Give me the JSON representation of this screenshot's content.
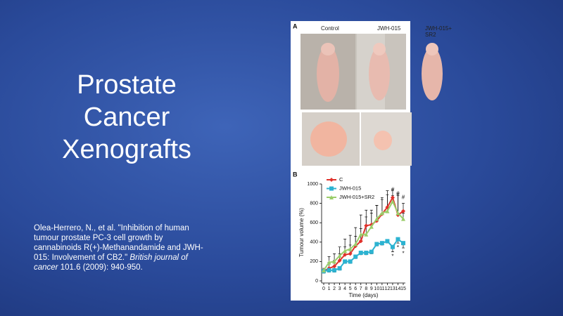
{
  "slide": {
    "title": "Prostate Cancer Xenografts",
    "citation": {
      "text": "Olea-Herrero, N., et al. \"Inhibition of human tumour prostate PC-3 cell growth by cannabinoids R(+)-Methanandamide and JWH-015: Involvement of CB2.\" ",
      "journal": "British journal of cancer",
      "details": " 101.6 (2009): 940-950."
    }
  },
  "panel_a": {
    "label": "A",
    "columns": [
      "Control",
      "JWH-015",
      "JWH-015+SR2"
    ]
  },
  "chart_data": {
    "type": "line",
    "panel_label": "B",
    "x_label": "Time (days)",
    "y_label": "Tumour volume (%)",
    "x": [
      0,
      1,
      2,
      3,
      4,
      5,
      6,
      7,
      8,
      9,
      10,
      11,
      12,
      13,
      14,
      15
    ],
    "xlim": [
      0,
      15
    ],
    "xticks": [
      0,
      1,
      2,
      3,
      4,
      5,
      6,
      7,
      8,
      9,
      10,
      11,
      12,
      13,
      14,
      15
    ],
    "ylim": [
      0,
      1000
    ],
    "yticks": [
      0,
      200,
      400,
      600,
      800,
      1000
    ],
    "series": [
      {
        "name": "C",
        "color": "#e0312b",
        "marker": "diamond",
        "error_direction": "up",
        "values": [
          100,
          130,
          150,
          210,
          270,
          280,
          360,
          410,
          570,
          580,
          620,
          690,
          760,
          860,
          680,
          720
        ],
        "errors": [
          20,
          60,
          60,
          70,
          80,
          90,
          100,
          130,
          160,
          150,
          160,
          150,
          170,
          80,
          200,
          80
        ]
      },
      {
        "name": "JWH-015",
        "color": "#2cb3d1",
        "marker": "square",
        "error_direction": "down",
        "values": [
          100,
          110,
          110,
          130,
          200,
          200,
          250,
          290,
          290,
          300,
          380,
          390,
          410,
          350,
          430,
          390
        ],
        "errors": [
          20,
          20,
          20,
          20,
          20,
          20,
          20,
          20,
          20,
          20,
          20,
          20,
          20,
          50,
          40,
          50
        ]
      },
      {
        "name": "JWH-015+SR2",
        "color": "#9acd6a",
        "marker": "triangle",
        "error_direction": "up",
        "values": [
          110,
          190,
          200,
          260,
          310,
          330,
          380,
          480,
          480,
          560,
          640,
          700,
          720,
          820,
          700,
          640
        ],
        "errors": [
          20,
          60,
          80,
          90,
          120,
          140,
          170,
          200,
          180,
          140,
          140,
          160,
          170,
          60,
          200,
          60
        ]
      }
    ],
    "annotations": [
      {
        "text": "#",
        "x": 13,
        "y": 940
      },
      {
        "text": "#",
        "x": 14,
        "y": 900
      },
      {
        "text": "#",
        "x": 15,
        "y": 860
      },
      {
        "text": "*",
        "x": 13,
        "y": 250
      },
      {
        "text": "*",
        "x": 14,
        "y": 340
      },
      {
        "text": "*",
        "x": 15,
        "y": 280
      }
    ]
  }
}
